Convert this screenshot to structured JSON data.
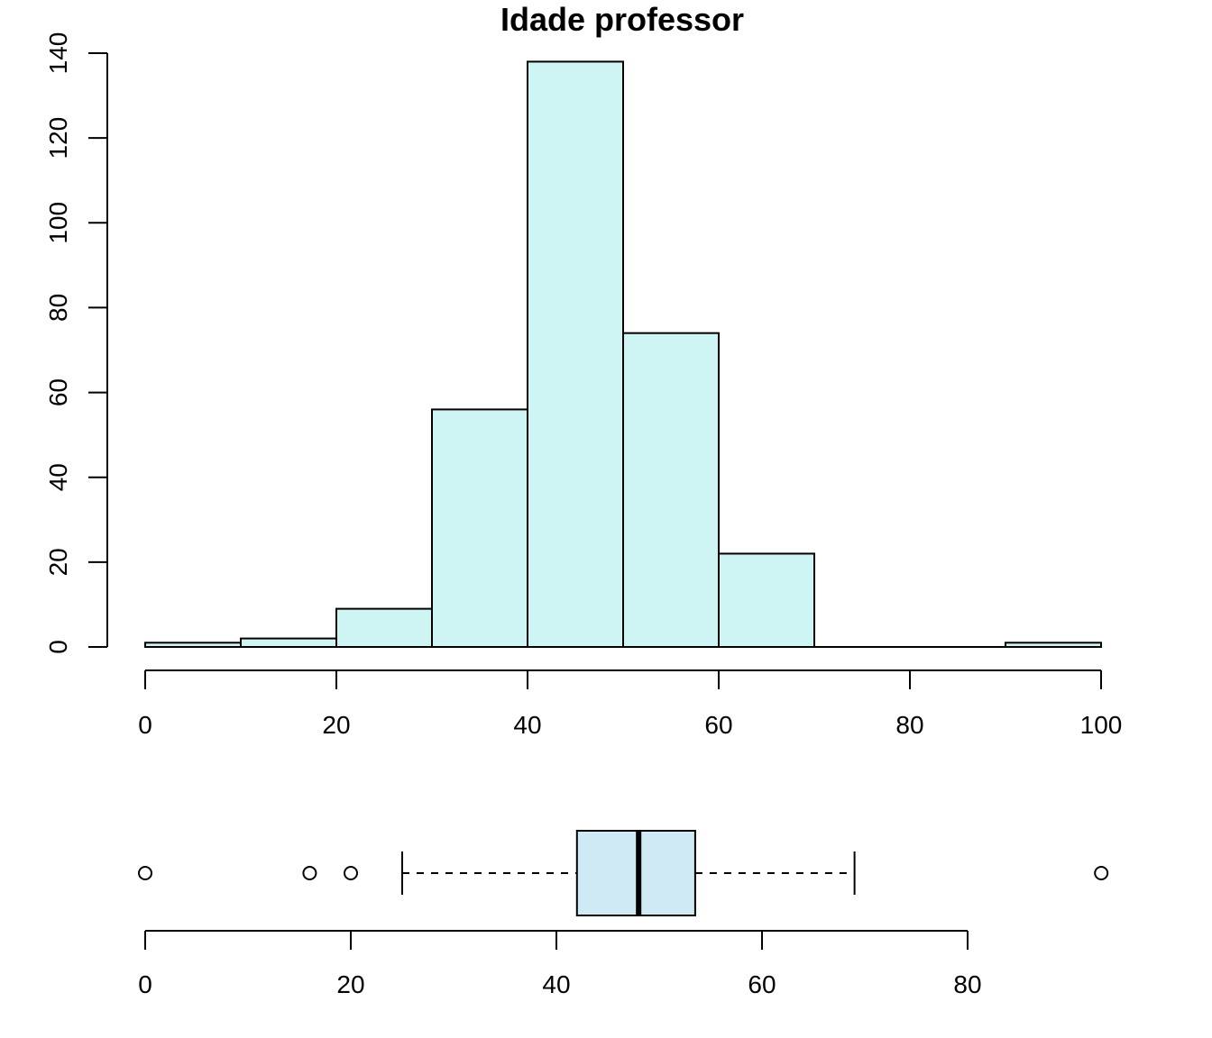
{
  "chart_data": [
    {
      "type": "histogram",
      "title": "Idade professor",
      "xlabel": "",
      "ylabel": "",
      "bin_edges": [
        0,
        10,
        20,
        30,
        40,
        50,
        60,
        70,
        80,
        90,
        100
      ],
      "values": [
        1,
        2,
        9,
        56,
        138,
        74,
        22,
        0,
        0,
        1
      ],
      "xlim": [
        0,
        100
      ],
      "ylim": [
        0,
        140
      ],
      "x_ticks": [
        "0",
        "20",
        "40",
        "60",
        "80",
        "100"
      ],
      "y_ticks": [
        "0",
        "20",
        "40",
        "60",
        "80",
        "100",
        "120",
        "140"
      ],
      "grid": false,
      "colors": {
        "fill": "#cff4f4",
        "stroke": "#000000"
      }
    },
    {
      "type": "boxplot",
      "orientation": "horizontal",
      "whisker_low": 25,
      "q1": 42,
      "median": 48,
      "q3": 53.5,
      "whisker_high": 69,
      "outliers": [
        0,
        16,
        20,
        93
      ],
      "xlim": [
        0,
        80
      ],
      "x_ticks": [
        "0",
        "20",
        "40",
        "60",
        "80"
      ],
      "grid": false,
      "colors": {
        "fill": "#cfeaf4",
        "stroke": "#000000"
      }
    }
  ]
}
